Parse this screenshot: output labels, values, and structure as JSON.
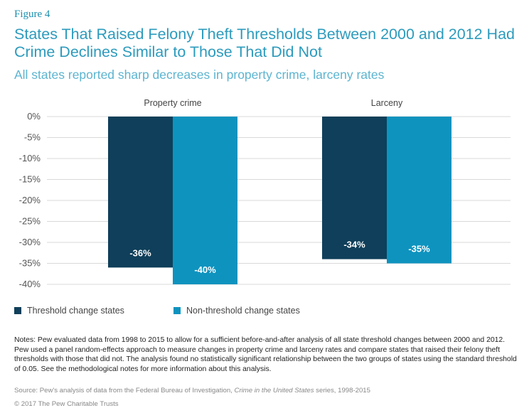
{
  "figure_label": "Figure 4",
  "title": "States That Raised Felony Theft Thresholds Between 2000 and 2012 Had Crime Declines Similar to Those That Did Not",
  "subtitle": "All states reported sharp decreases in property crime, larceny rates",
  "chart_data": {
    "type": "bar",
    "categories": [
      "Property crime",
      "Larceny"
    ],
    "series": [
      {
        "name": "Threshold change states",
        "values": [
          -36,
          -34
        ],
        "labels": [
          "-36%",
          "-34%"
        ],
        "color": "#0f3f5a"
      },
      {
        "name": "Non-threshold change states",
        "values": [
          -40,
          -35
        ],
        "labels": [
          "-40%",
          "-35%"
        ],
        "color": "#0e93bf"
      }
    ],
    "yticks": [
      "0%",
      "-5%",
      "-10%",
      "-15%",
      "-20%",
      "-25%",
      "-30%",
      "-35%",
      "-40%"
    ],
    "ytick_values": [
      0,
      -5,
      -10,
      -15,
      -20,
      -25,
      -30,
      -35,
      -40
    ],
    "ylim": [
      -40,
      0
    ],
    "grid": true,
    "legend_position": "bottom-left",
    "label_color": "#ffffff",
    "grid_color": "#d9d9d9"
  },
  "notes": "Notes: Pew evaluated data from 1998 to 2015 to allow for a sufficient before-and-after analysis of all state threshold changes between 2000 and 2012. Pew used a panel random-effects approach to measure changes in property crime and larceny rates and compare states that raised their felony theft thresholds with those that did not. The analysis found no statistically significant relationship between the two groups of states using the standard threshold of 0.05. See the methodological notes for more information about this analysis.",
  "source": {
    "prefix": "Source: Pew's analysis of data from the Federal Bureau of Investigation, ",
    "italic": "Crime in the United States",
    "suffix": " series, 1998-2015"
  },
  "copyright": "© 2017 The Pew Charitable Trusts"
}
